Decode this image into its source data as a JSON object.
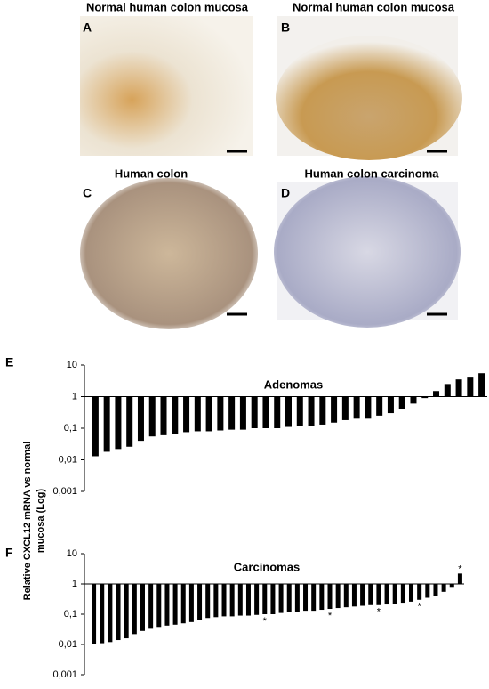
{
  "panels": [
    {
      "letter": "A",
      "title": "Normal human colon mucosa"
    },
    {
      "letter": "B",
      "title": "Normal human colon mucosa"
    },
    {
      "letter": "C",
      "title": "Human colon"
    },
    {
      "letter": "D",
      "title": "Human colon carcinoma"
    }
  ],
  "ylabel_lines": [
    "Relative CXCL12 mRNA vs normal",
    "mucosa (Log)"
  ],
  "chart_data": [
    {
      "type": "bar",
      "panel": "E",
      "title": "Adenomas",
      "log_scale": true,
      "color": "#000000",
      "values": [
        0.013,
        0.018,
        0.022,
        0.026,
        0.04,
        0.055,
        0.06,
        0.065,
        0.075,
        0.08,
        0.08,
        0.085,
        0.09,
        0.09,
        0.1,
        0.1,
        0.1,
        0.11,
        0.12,
        0.12,
        0.13,
        0.15,
        0.18,
        0.2,
        0.2,
        0.25,
        0.3,
        0.4,
        0.6,
        0.9,
        1.5,
        2.5,
        3.5,
        4,
        5.5
      ],
      "ylim": [
        0.001,
        10
      ],
      "yticks": [
        10,
        1,
        {
          "value": 0.1,
          "label": "0,1"
        },
        {
          "value": 0.01,
          "label": "0,01"
        },
        {
          "value": 0.001,
          "label": "0,001"
        }
      ]
    },
    {
      "type": "bar",
      "panel": "F",
      "title": "Carcinomas",
      "log_scale": true,
      "color": "#000000",
      "values": [
        0.01,
        0.011,
        0.012,
        0.014,
        0.016,
        0.022,
        0.028,
        0.033,
        0.038,
        0.042,
        0.045,
        0.05,
        0.055,
        0.065,
        0.075,
        0.08,
        0.085,
        0.085,
        0.09,
        0.09,
        0.095,
        0.1,
        0.1,
        0.11,
        0.12,
        0.12,
        0.13,
        0.13,
        0.14,
        0.15,
        0.16,
        0.17,
        0.18,
        0.19,
        0.2,
        0.2,
        0.21,
        0.22,
        0.24,
        0.26,
        0.3,
        0.35,
        0.4,
        0.55,
        0.8,
        2.2
      ],
      "ylim": [
        0.001,
        10
      ],
      "yticks": [
        10,
        1,
        {
          "value": 0.1,
          "label": "0,1"
        },
        {
          "value": 0.01,
          "label": "0,01"
        },
        {
          "value": 0.001,
          "label": "0,001"
        }
      ],
      "annotations": [
        {
          "index": 21,
          "label": "*"
        },
        {
          "index": 29,
          "label": "*"
        },
        {
          "index": 35,
          "label": "*"
        },
        {
          "index": 40,
          "label": "*"
        },
        {
          "index": 45,
          "label": "*"
        }
      ]
    }
  ]
}
